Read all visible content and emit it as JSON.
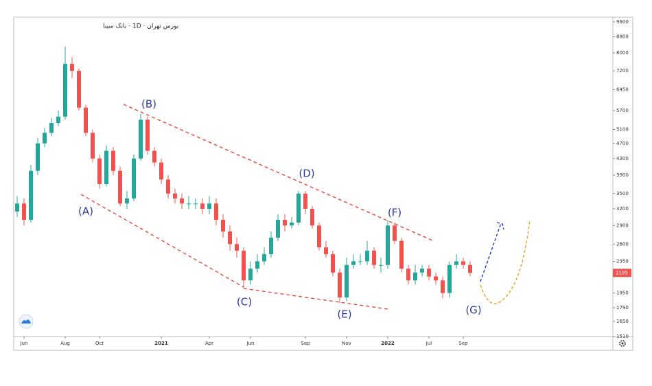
{
  "chart_data": {
    "type": "candlestick",
    "title": "بورس تهران · 1D · بانک سینا",
    "categories": [
      null,
      "Jun",
      null,
      null,
      null,
      null,
      null,
      "Aug",
      null,
      null,
      null,
      null,
      "Oct",
      null,
      null,
      null,
      null,
      null,
      null,
      null,
      null,
      "2021",
      null,
      null,
      null,
      null,
      null,
      null,
      "Apr",
      null,
      null,
      null,
      null,
      null,
      "Jun",
      null,
      null,
      null,
      null,
      null,
      null,
      null,
      "Sep",
      null,
      null,
      null,
      null,
      null,
      "Nov",
      null,
      null,
      null,
      null,
      null,
      "2022",
      null,
      null,
      null,
      null,
      null,
      "Jul",
      null,
      null,
      null,
      null,
      "Sep",
      null,
      null,
      null,
      null,
      null,
      null,
      null,
      null,
      null,
      null,
      null,
      null,
      null,
      null,
      null,
      null,
      null,
      null,
      null,
      null,
      null
    ],
    "open": [
      3150,
      3300,
      3000,
      4000,
      4700,
      5000,
      5300,
      5500,
      7500,
      7200,
      5800,
      5000,
      4300,
      3700,
      4500,
      4000,
      3300,
      3400,
      4300,
      5400,
      4500,
      4200,
      3800,
      3500,
      3400,
      3300,
      3300,
      3300,
      3200,
      3300,
      3000,
      2800,
      2600,
      2500,
      2100,
      2250,
      2350,
      2450,
      2700,
      3000,
      2900,
      2950,
      3500,
      3200,
      2900,
      2550,
      2450,
      2200,
      1900,
      2300,
      2350,
      2350,
      2500,
      2300,
      2300,
      2900,
      2650,
      2250,
      2100,
      2200,
      2250,
      2150,
      2100,
      1950,
      2300,
      2350,
      2300,
      null,
      null,
      null,
      null,
      null,
      null,
      null,
      null,
      null,
      null,
      null,
      null,
      null,
      null,
      null,
      null,
      null,
      null,
      null,
      null
    ],
    "high": [
      3450,
      3400,
      4150,
      4850,
      5150,
      5450,
      5700,
      8300,
      7800,
      7300,
      5900,
      5100,
      4400,
      4650,
      4600,
      4100,
      3550,
      4400,
      5600,
      5500,
      4600,
      4300,
      3900,
      3600,
      3500,
      3450,
      3400,
      3400,
      3450,
      3400,
      3100,
      2900,
      2700,
      2550,
      2350,
      2450,
      2550,
      2800,
      3100,
      3100,
      3050,
      3550,
      3550,
      3250,
      2950,
      2650,
      2500,
      2250,
      2400,
      2450,
      2450,
      2650,
      2550,
      2400,
      3000,
      2950,
      2700,
      2300,
      2300,
      2300,
      2300,
      2200,
      2150,
      2350,
      2450,
      2400,
      2350,
      null,
      null,
      null,
      null,
      null,
      null,
      null,
      null,
      null,
      null,
      null,
      null,
      null,
      null,
      null,
      null,
      null,
      null,
      null,
      null
    ],
    "low": [
      3050,
      2900,
      2950,
      3900,
      4600,
      4900,
      5200,
      5400,
      6900,
      5700,
      4900,
      4200,
      3600,
      3650,
      3900,
      3250,
      3200,
      3350,
      4250,
      4400,
      4100,
      3700,
      3400,
      3300,
      3200,
      3200,
      3200,
      3100,
      3100,
      2900,
      2700,
      2500,
      2400,
      2010,
      2050,
      2200,
      2300,
      2400,
      2650,
      2800,
      2850,
      2900,
      3100,
      2850,
      2500,
      2400,
      2150,
      1840,
      1860,
      2250,
      2300,
      2300,
      2250,
      2200,
      2250,
      2600,
      2200,
      2050,
      2050,
      2150,
      2100,
      2050,
      1890,
      1900,
      2250,
      2250,
      2150,
      null,
      null,
      null,
      null,
      null,
      null,
      null,
      null,
      null,
      null,
      null,
      null,
      null,
      null,
      null,
      null,
      null,
      null,
      null,
      null
    ],
    "close": [
      3300,
      3000,
      4000,
      4700,
      5000,
      5300,
      5500,
      7500,
      7200,
      5800,
      5000,
      4300,
      3700,
      4500,
      4000,
      3300,
      3400,
      4300,
      5400,
      4500,
      4200,
      3800,
      3500,
      3400,
      3300,
      3300,
      3300,
      3200,
      3300,
      3000,
      2800,
      2600,
      2500,
      2100,
      2250,
      2350,
      2450,
      2700,
      3000,
      2900,
      2950,
      3500,
      3200,
      2900,
      2550,
      2450,
      2200,
      1900,
      2300,
      2350,
      2350,
      2500,
      2300,
      2300,
      2900,
      2650,
      2250,
      2100,
      2200,
      2250,
      2150,
      2100,
      1950,
      2300,
      2350,
      2300,
      2195,
      null,
      null,
      null,
      null,
      null,
      null,
      null,
      null,
      null,
      null,
      null,
      null,
      null,
      null,
      null,
      null,
      null,
      null,
      null,
      null
    ],
    "up_color": "#26a69a",
    "down_color": "#ef5350",
    "log_scale": true,
    "ylim": [
      1510,
      9870
    ],
    "yticks": [
      9600,
      8800,
      8000,
      7200,
      6450,
      5700,
      5100,
      4700,
      4300,
      3900,
      3500,
      3200,
      2900,
      2600,
      2350,
      1950,
      1790,
      1650,
      1510
    ],
    "annotations": [
      "(A)",
      "(B)",
      "(C)",
      "(D)",
      "(E)",
      "(F)",
      "(G)"
    ]
  }
}
